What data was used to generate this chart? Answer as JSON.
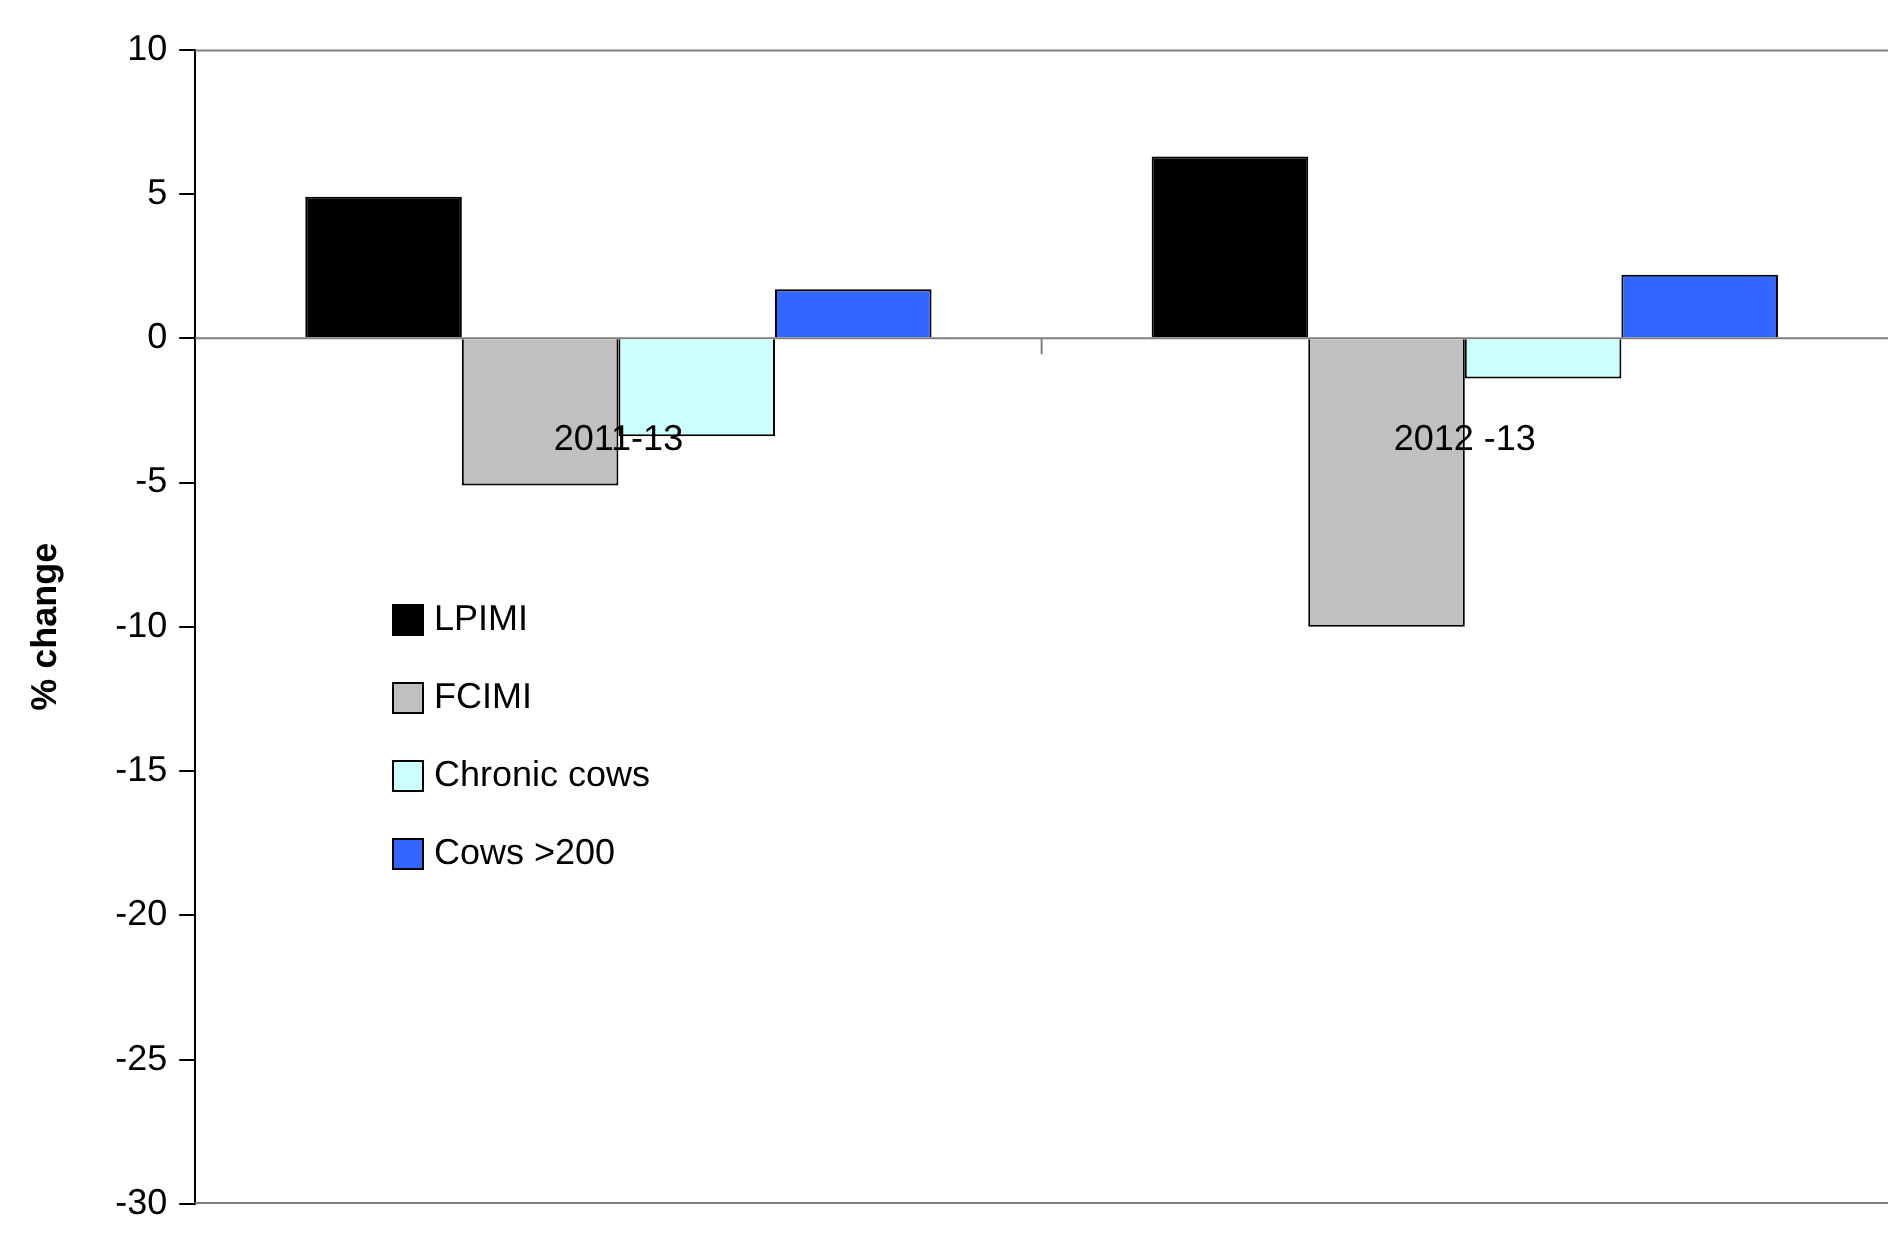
{
  "chart_data": {
    "type": "bar",
    "ylabel": "% change",
    "categories": [
      "2011-13",
      "2012 -13"
    ],
    "series": [
      {
        "name": "LPIMI",
        "color": "#000000",
        "values": [
          4.9,
          6.3
        ]
      },
      {
        "name": "FCIMI",
        "color": "#c0c0c0",
        "values": [
          -5.1,
          -10.0
        ]
      },
      {
        "name": "Chronic cows",
        "color": "#ccffff",
        "values": [
          -3.4,
          -1.4
        ]
      },
      {
        "name": "Cows >200",
        "color": "#3366ff",
        "values": [
          1.7,
          2.2
        ]
      }
    ],
    "ylim": [
      -30,
      10
    ],
    "yticks": [
      -30,
      -25,
      -20,
      -15,
      -10,
      -5,
      0,
      5,
      10
    ],
    "grid": false,
    "legend": "bottom left"
  }
}
